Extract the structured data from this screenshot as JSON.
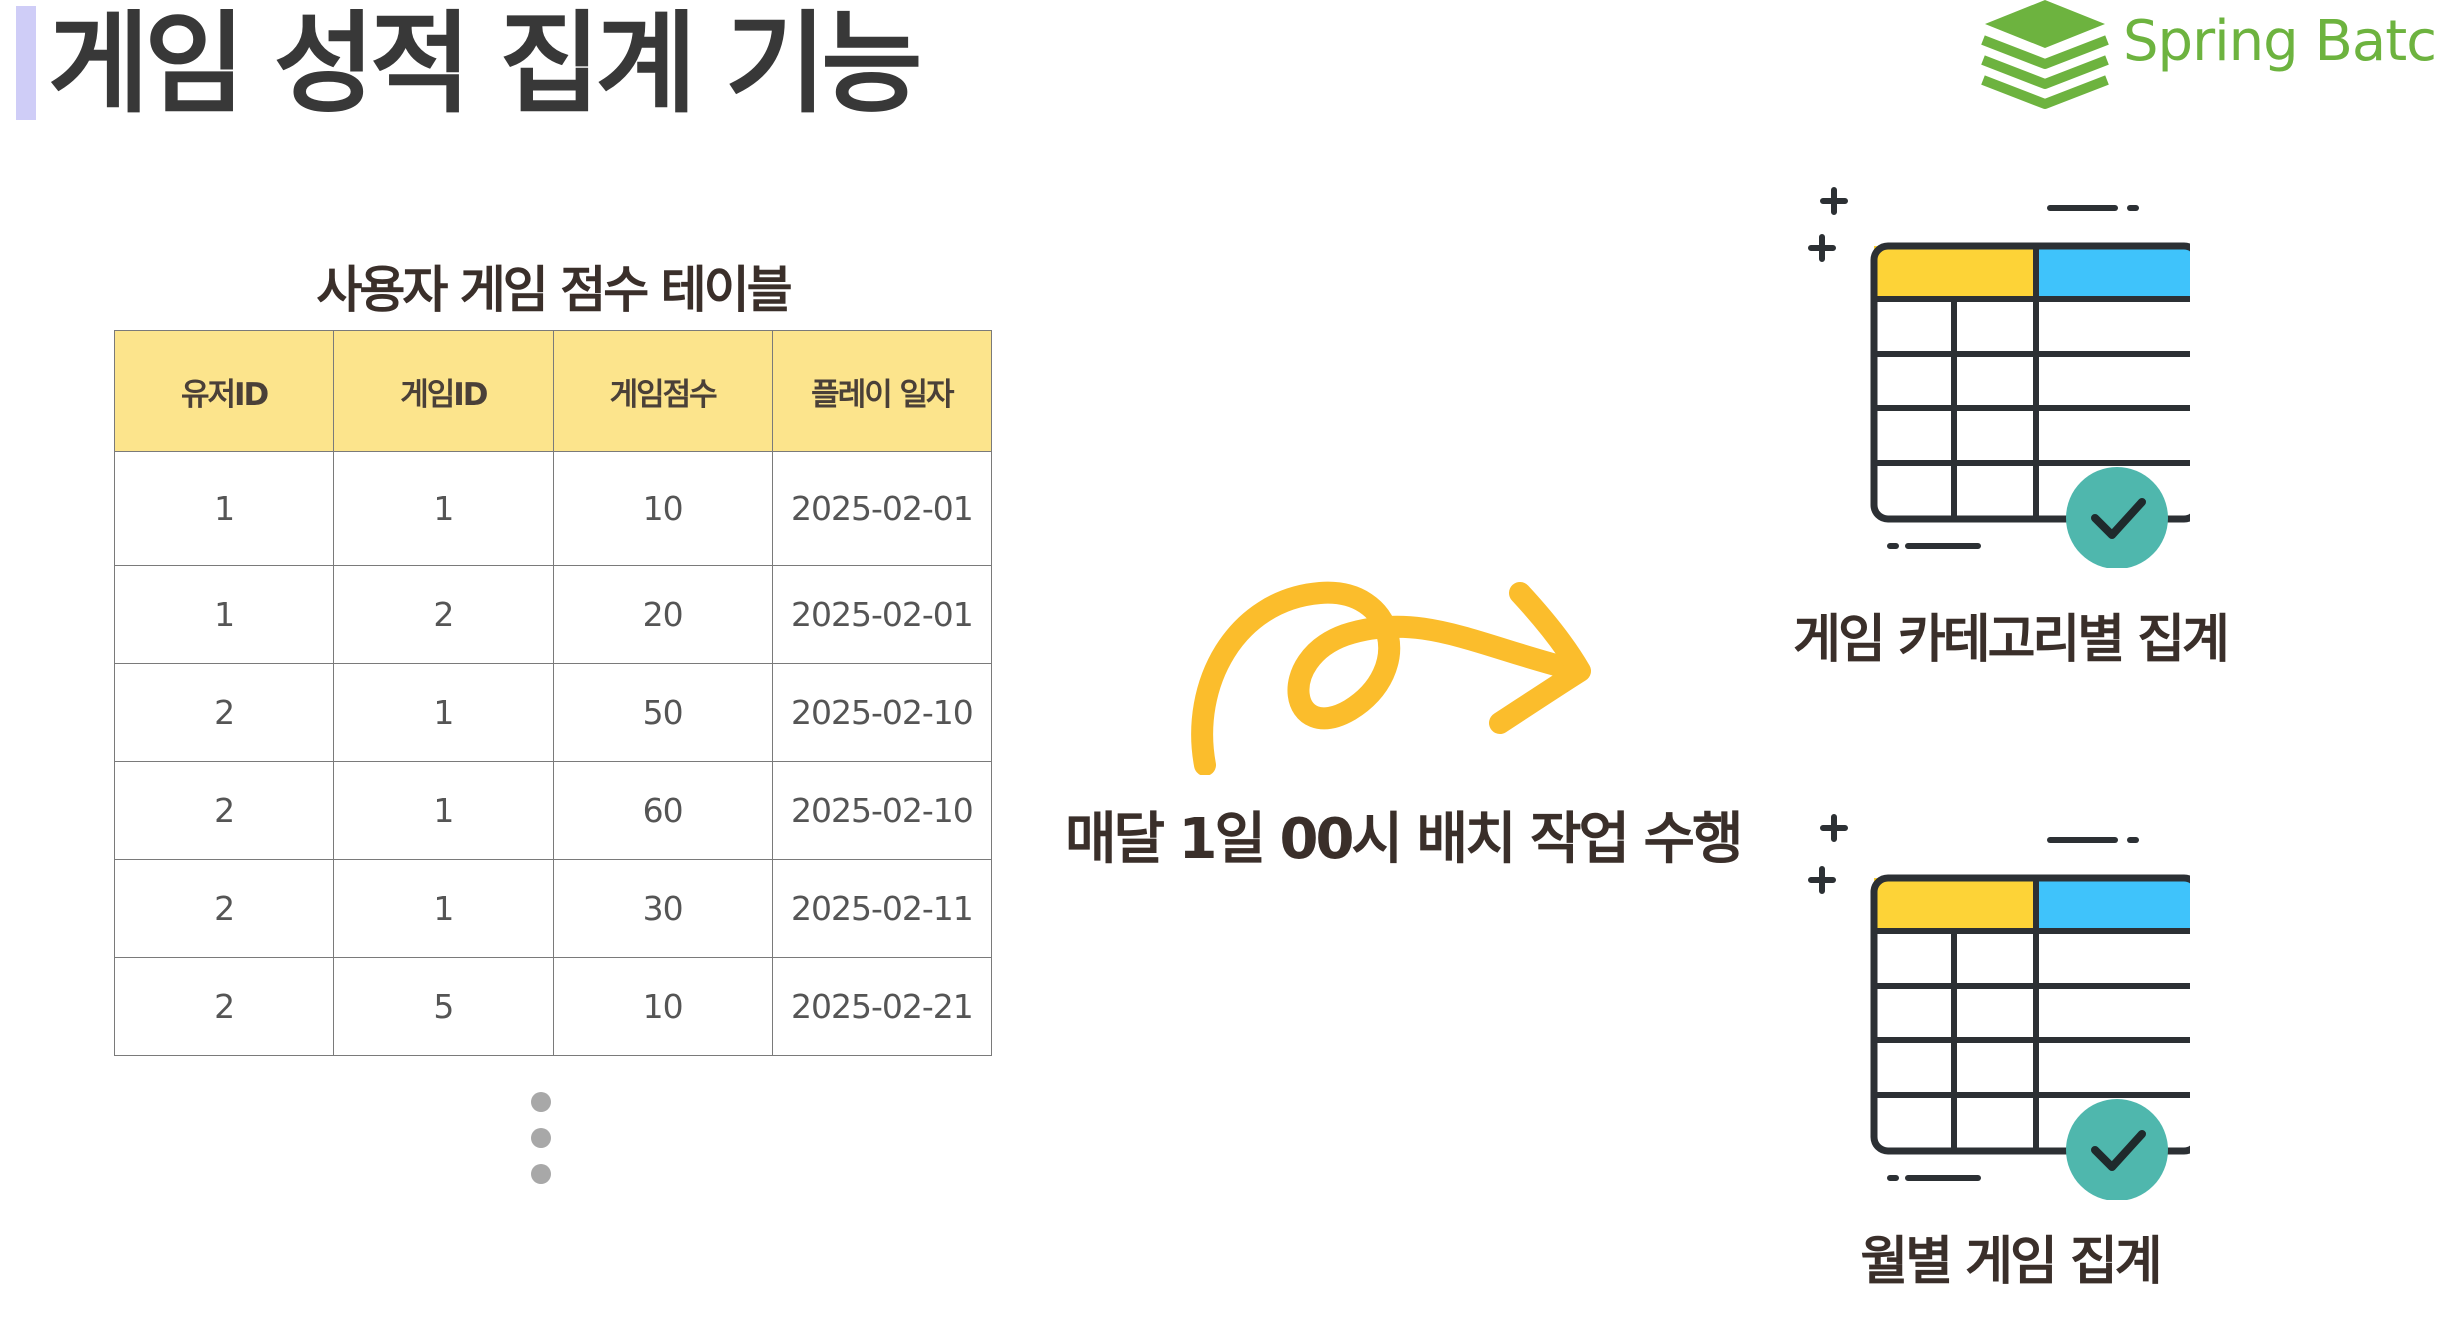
{
  "page": {
    "title": "게임 성적 집계 기능",
    "logo_text": "Spring Batch"
  },
  "score_table": {
    "caption": "사용자 게임 점수 테이블",
    "headers": [
      "유저ID",
      "게임ID",
      "게임점수",
      "플레이 일자"
    ],
    "rows": [
      [
        "1",
        "1",
        "10",
        "2025-02-01"
      ],
      [
        "1",
        "2",
        "20",
        "2025-02-01"
      ],
      [
        "2",
        "1",
        "50",
        "2025-02-10"
      ],
      [
        "2",
        "1",
        "60",
        "2025-02-10"
      ],
      [
        "2",
        "1",
        "30",
        "2025-02-11"
      ],
      [
        "2",
        "5",
        "10",
        "2025-02-21"
      ]
    ]
  },
  "batch": {
    "label": "매달 1일 00시 배치 작업 수행"
  },
  "outputs": {
    "category_label": "게임 카테고리별 집계",
    "monthly_label": "월별 게임 집계"
  },
  "colors": {
    "title_accent": "#cfcdf7",
    "header_fill": "#fce48c",
    "arrow": "#fbbd2c",
    "icon_yellow": "#fdd337",
    "icon_blue": "#3fc3fb",
    "check_badge": "#4fb7ad",
    "spring_green": "#6db33f"
  },
  "icons": {
    "logo": "spring-batch-logo-icon",
    "arrow": "curly-arrow-icon",
    "output_table": "table-check-icon",
    "more": "vertical-ellipsis-icon"
  }
}
